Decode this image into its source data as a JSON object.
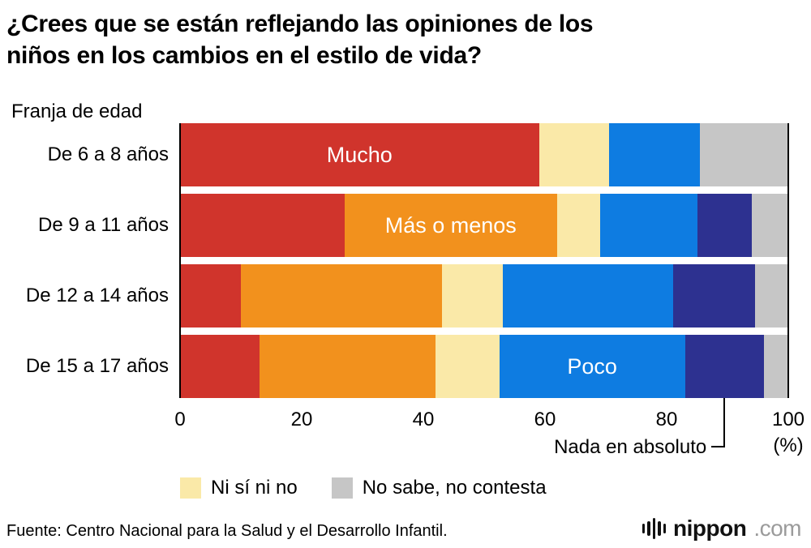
{
  "title_lines": [
    "¿Crees que se están reflejando las opiniones de los",
    "niños en los cambios en el estilo de vida?"
  ],
  "axis_label": "Franja de edad",
  "chart_data": {
    "type": "bar",
    "stacked": true,
    "orientation": "horizontal",
    "title": "¿Crees que se están reflejando las opiniones de los niños en los cambios en el estilo de vida?",
    "categories": [
      "De 6 a 8 años",
      "De 9 a 11 años",
      "De 12 a 14 años",
      "De 15 a 17 años"
    ],
    "series": [
      {
        "name": "Mucho",
        "color": "#d0342c",
        "values": [
          59,
          27,
          10,
          13
        ]
      },
      {
        "name": "Más o menos",
        "color": "#f2911d",
        "values": [
          0,
          35,
          33,
          29
        ]
      },
      {
        "name": "Ni sí ni no",
        "color": "#fae9a8",
        "values": [
          11.5,
          7,
          10,
          10.5
        ]
      },
      {
        "name": "Poco",
        "color": "#0e7ce1",
        "values": [
          15,
          16,
          28,
          30.5
        ]
      },
      {
        "name": "Nada en absoluto",
        "color": "#2d3190",
        "values": [
          0,
          9,
          13.5,
          13
        ]
      },
      {
        "name": "No sabe, no contesta",
        "color": "#c6c6c6",
        "values": [
          14.5,
          6,
          5.5,
          4
        ]
      }
    ],
    "xlim": [
      0,
      100
    ],
    "x_ticks": [
      "0",
      "20",
      "40",
      "60",
      "80",
      "100"
    ],
    "x_unit": "(%)",
    "grid": false,
    "bar_labels": [
      {
        "row": 0,
        "series": "Mucho",
        "text": "Mucho"
      },
      {
        "row": 1,
        "series": "Más o menos",
        "text": "Más o menos"
      },
      {
        "row": 3,
        "series": "Poco",
        "text": "Poco"
      }
    ],
    "annotation": {
      "text": "Nada en absoluto",
      "row": 3,
      "series": "Nada en absoluto"
    }
  },
  "legend": [
    {
      "label": "Ni sí ni no",
      "color": "#fae9a8"
    },
    {
      "label": "No sabe, no contesta",
      "color": "#c6c6c6"
    }
  ],
  "source": "Fuente: Centro Nacional para la Salud y el Desarrollo Infantil.",
  "logo": {
    "brand": "nippon",
    "tld": ".com"
  }
}
